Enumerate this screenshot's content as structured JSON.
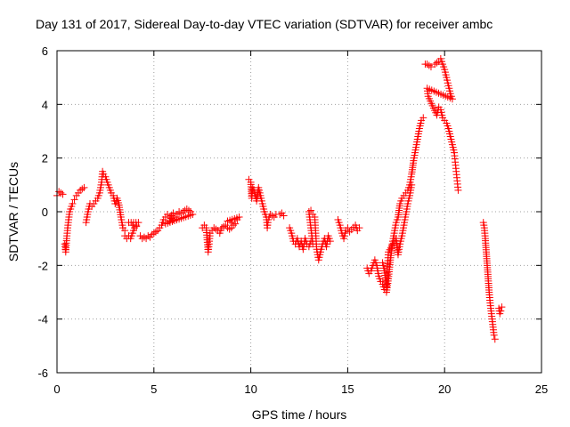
{
  "chart_data": {
    "type": "scatter",
    "title": "Day 131 of 2017, Sidereal Day-to-day VTEC variation (SDTVAR) for receiver ambc",
    "xlabel": "GPS time / hours",
    "ylabel": "SDTVAR / TECUs",
    "xlim": [
      0,
      25
    ],
    "ylim": [
      -6,
      6
    ],
    "xticks": [
      0,
      5,
      10,
      15,
      20,
      25
    ],
    "yticks": [
      -6,
      -4,
      -2,
      0,
      2,
      4,
      6
    ],
    "grid": true,
    "marker": "plus",
    "color": "#ff0000",
    "series": [
      {
        "name": "SDTVAR",
        "segments": [
          [
            [
              0.0,
              0.6
            ],
            [
              0.1,
              0.75
            ],
            [
              0.2,
              0.7
            ],
            [
              0.3,
              0.65
            ]
          ],
          [
            [
              0.4,
              -1.2
            ],
            [
              0.45,
              -1.5
            ],
            [
              0.5,
              -1.0
            ],
            [
              0.55,
              -0.6
            ],
            [
              0.6,
              -0.3
            ],
            [
              0.65,
              0.0
            ],
            [
              0.7,
              0.1
            ],
            [
              0.8,
              0.3
            ],
            [
              0.9,
              0.45
            ],
            [
              1.0,
              0.6
            ],
            [
              1.1,
              0.7
            ],
            [
              1.2,
              0.8
            ],
            [
              1.3,
              0.85
            ],
            [
              1.4,
              0.9
            ]
          ],
          [
            [
              1.5,
              -0.4
            ],
            [
              1.6,
              0.0
            ],
            [
              1.7,
              0.3
            ],
            [
              1.8,
              0.2
            ],
            [
              1.9,
              0.3
            ],
            [
              2.0,
              0.4
            ],
            [
              2.1,
              0.5
            ],
            [
              2.2,
              0.7
            ],
            [
              2.3,
              1.1
            ],
            [
              2.35,
              1.5
            ],
            [
              2.4,
              1.4
            ],
            [
              2.5,
              1.3
            ],
            [
              2.6,
              1.1
            ],
            [
              2.7,
              0.9
            ],
            [
              2.8,
              0.7
            ],
            [
              2.9,
              0.6
            ],
            [
              3.0,
              0.3
            ],
            [
              3.1,
              0.5
            ],
            [
              3.2,
              0.25
            ],
            [
              3.3,
              -0.2
            ],
            [
              3.4,
              -0.6
            ],
            [
              3.5,
              -0.7
            ]
          ],
          [
            [
              3.5,
              -0.9
            ],
            [
              3.6,
              -1.0
            ],
            [
              3.7,
              -0.9
            ],
            [
              3.8,
              -1.0
            ],
            [
              3.9,
              -0.8
            ],
            [
              4.0,
              -0.6
            ],
            [
              4.1,
              -0.5
            ],
            [
              4.2,
              -0.4
            ],
            [
              3.7,
              -0.4
            ],
            [
              3.9,
              -0.5
            ],
            [
              4.1,
              -0.55
            ]
          ],
          [
            [
              4.3,
              -0.9
            ],
            [
              4.4,
              -1.0
            ],
            [
              4.5,
              -0.95
            ],
            [
              4.6,
              -1.0
            ],
            [
              4.7,
              -0.9
            ],
            [
              4.8,
              -0.95
            ],
            [
              4.9,
              -0.85
            ],
            [
              5.0,
              -0.8
            ],
            [
              5.1,
              -0.75
            ],
            [
              5.2,
              -0.7
            ],
            [
              5.3,
              -0.6
            ],
            [
              5.4,
              -0.5
            ],
            [
              5.5,
              -0.3
            ],
            [
              5.6,
              -0.2
            ],
            [
              5.7,
              -0.1
            ],
            [
              5.8,
              -0.2
            ],
            [
              5.9,
              -0.15
            ],
            [
              6.0,
              -0.3
            ],
            [
              6.1,
              -0.2
            ],
            [
              6.2,
              -0.1
            ],
            [
              6.3,
              0.0
            ],
            [
              6.4,
              -0.05
            ],
            [
              6.5,
              0.0
            ],
            [
              6.6,
              0.05
            ],
            [
              6.7,
              0.1
            ],
            [
              6.8,
              0.05
            ],
            [
              6.9,
              0.0
            ],
            [
              7.0,
              -0.1
            ],
            [
              5.6,
              -0.45
            ],
            [
              5.8,
              -0.35
            ],
            [
              6.0,
              -0.05
            ]
          ],
          [
            [
              7.5,
              -0.6
            ],
            [
              7.6,
              -0.5
            ],
            [
              7.7,
              -0.6
            ],
            [
              7.8,
              -1.5
            ],
            [
              7.85,
              -1.2
            ],
            [
              7.9,
              -0.8
            ],
            [
              8.0,
              -0.7
            ],
            [
              8.1,
              -0.6
            ],
            [
              8.2,
              -0.65
            ],
            [
              8.3,
              -0.7
            ],
            [
              8.4,
              -0.8
            ],
            [
              8.5,
              -0.6
            ],
            [
              8.6,
              -0.55
            ],
            [
              8.7,
              -0.5
            ],
            [
              8.8,
              -0.6
            ],
            [
              8.9,
              -0.65
            ],
            [
              9.0,
              -0.6
            ],
            [
              9.1,
              -0.5
            ],
            [
              9.2,
              -0.45
            ],
            [
              9.3,
              -0.3
            ],
            [
              9.4,
              -0.2
            ],
            [
              8.8,
              -0.35
            ],
            [
              9.0,
              -0.4
            ]
          ],
          [
            [
              9.9,
              1.2
            ],
            [
              10.0,
              1.1
            ],
            [
              10.05,
              0.5
            ],
            [
              10.1,
              0.9
            ],
            [
              10.2,
              0.7
            ],
            [
              10.3,
              0.4
            ],
            [
              10.4,
              0.9
            ],
            [
              10.5,
              0.6
            ],
            [
              10.6,
              0.3
            ],
            [
              10.7,
              0.0
            ],
            [
              10.8,
              -0.2
            ],
            [
              10.85,
              -0.6
            ],
            [
              10.9,
              -0.3
            ],
            [
              11.0,
              -0.1
            ],
            [
              11.1,
              -0.15
            ],
            [
              11.2,
              -0.2
            ],
            [
              11.3,
              -0.1
            ],
            [
              11.5,
              -0.1
            ],
            [
              11.6,
              -0.05
            ],
            [
              11.7,
              -0.15
            ]
          ],
          [
            [
              12.0,
              -0.6
            ],
            [
              12.1,
              -0.8
            ],
            [
              12.2,
              -1.1
            ],
            [
              12.3,
              -1.2
            ],
            [
              12.4,
              -1.0
            ],
            [
              12.5,
              -1.3
            ],
            [
              12.6,
              -1.1
            ],
            [
              12.7,
              -1.4
            ],
            [
              12.8,
              -1.0
            ],
            [
              12.9,
              -1.2
            ],
            [
              13.0,
              -1.3
            ],
            [
              13.1,
              -1.1
            ],
            [
              13.2,
              -1.2
            ],
            [
              13.0,
              0.0
            ],
            [
              13.1,
              0.05
            ],
            [
              13.2,
              -0.1
            ],
            [
              13.3,
              -0.2
            ],
            [
              13.4,
              -1.4
            ],
            [
              13.5,
              -1.8
            ],
            [
              13.6,
              -1.5
            ],
            [
              13.7,
              -1.2
            ],
            [
              13.8,
              -1.0
            ],
            [
              13.9,
              -1.3
            ],
            [
              14.0,
              -0.9
            ],
            [
              14.1,
              -1.1
            ]
          ],
          [
            [
              14.5,
              -0.3
            ],
            [
              14.6,
              -0.5
            ],
            [
              14.7,
              -0.8
            ],
            [
              14.8,
              -1.0
            ],
            [
              14.9,
              -0.7
            ],
            [
              15.0,
              -0.6
            ],
            [
              15.1,
              -0.75
            ],
            [
              15.4,
              -0.5
            ],
            [
              15.5,
              -0.7
            ],
            [
              15.6,
              -0.6
            ]
          ],
          [
            [
              16.0,
              -2.1
            ],
            [
              16.1,
              -2.3
            ],
            [
              16.2,
              -2.2
            ],
            [
              16.4,
              -1.8
            ],
            [
              16.5,
              -2.0
            ],
            [
              16.6,
              -2.4
            ],
            [
              16.7,
              -2.6
            ],
            [
              16.8,
              -2.7
            ],
            [
              16.9,
              -2.9
            ],
            [
              17.0,
              -3.0
            ],
            [
              17.1,
              -2.5
            ],
            [
              17.2,
              -1.8
            ],
            [
              17.3,
              -1.2
            ],
            [
              17.4,
              -0.8
            ],
            [
              17.5,
              -0.4
            ],
            [
              17.6,
              -0.2
            ],
            [
              17.7,
              0.3
            ],
            [
              17.8,
              0.5
            ],
            [
              17.9,
              0.6
            ],
            [
              18.0,
              0.7
            ],
            [
              18.1,
              0.8
            ],
            [
              18.2,
              1.0
            ],
            [
              18.3,
              1.4
            ],
            [
              18.4,
              1.9
            ],
            [
              18.5,
              2.3
            ],
            [
              18.6,
              2.7
            ],
            [
              18.7,
              3.1
            ],
            [
              18.8,
              3.4
            ],
            [
              18.9,
              3.5
            ]
          ],
          [
            [
              16.8,
              -1.9
            ],
            [
              16.9,
              -2.2
            ],
            [
              17.0,
              -2.8
            ],
            [
              17.1,
              -1.5
            ],
            [
              17.5,
              -1.0
            ],
            [
              17.6,
              -1.6
            ],
            [
              17.7,
              -1.2
            ],
            [
              17.8,
              -0.9
            ],
            [
              17.9,
              -0.5
            ],
            [
              18.0,
              -0.1
            ],
            [
              18.1,
              0.3
            ],
            [
              18.2,
              0.6
            ],
            [
              18.3,
              1.0
            ]
          ],
          [
            [
              19.0,
              5.5
            ],
            [
              19.1,
              5.5
            ],
            [
              19.2,
              5.45
            ],
            [
              19.3,
              5.4
            ],
            [
              19.5,
              5.5
            ],
            [
              19.6,
              5.55
            ],
            [
              19.7,
              5.6
            ],
            [
              19.8,
              5.7
            ],
            [
              19.9,
              5.5
            ],
            [
              20.0,
              5.3
            ],
            [
              20.1,
              5.0
            ],
            [
              20.2,
              4.7
            ],
            [
              20.3,
              4.4
            ],
            [
              20.4,
              4.2
            ],
            [
              19.1,
              4.6
            ],
            [
              19.15,
              4.3
            ],
            [
              19.6,
              3.6
            ],
            [
              19.7,
              3.9
            ],
            [
              19.8,
              3.8
            ],
            [
              19.9,
              3.5
            ],
            [
              20.0,
              3.4
            ],
            [
              20.1,
              3.3
            ],
            [
              20.2,
              3.1
            ],
            [
              20.3,
              2.8
            ],
            [
              20.4,
              2.5
            ],
            [
              20.5,
              2.2
            ],
            [
              20.7,
              0.8
            ]
          ],
          [
            [
              22.0,
              -0.4
            ],
            [
              22.05,
              -0.6
            ],
            [
              22.1,
              -1.0
            ],
            [
              22.15,
              -1.5
            ],
            [
              22.2,
              -2.0
            ],
            [
              22.25,
              -2.5
            ],
            [
              22.3,
              -3.0
            ],
            [
              22.35,
              -3.4
            ],
            [
              22.4,
              -3.7
            ],
            [
              22.45,
              -4.0
            ],
            [
              22.5,
              -4.3
            ],
            [
              22.55,
              -4.6
            ],
            [
              22.6,
              -4.75
            ]
          ],
          [
            [
              22.8,
              -3.6
            ],
            [
              22.85,
              -3.8
            ],
            [
              22.9,
              -3.7
            ],
            [
              22.95,
              -3.55
            ]
          ]
        ]
      }
    ]
  }
}
